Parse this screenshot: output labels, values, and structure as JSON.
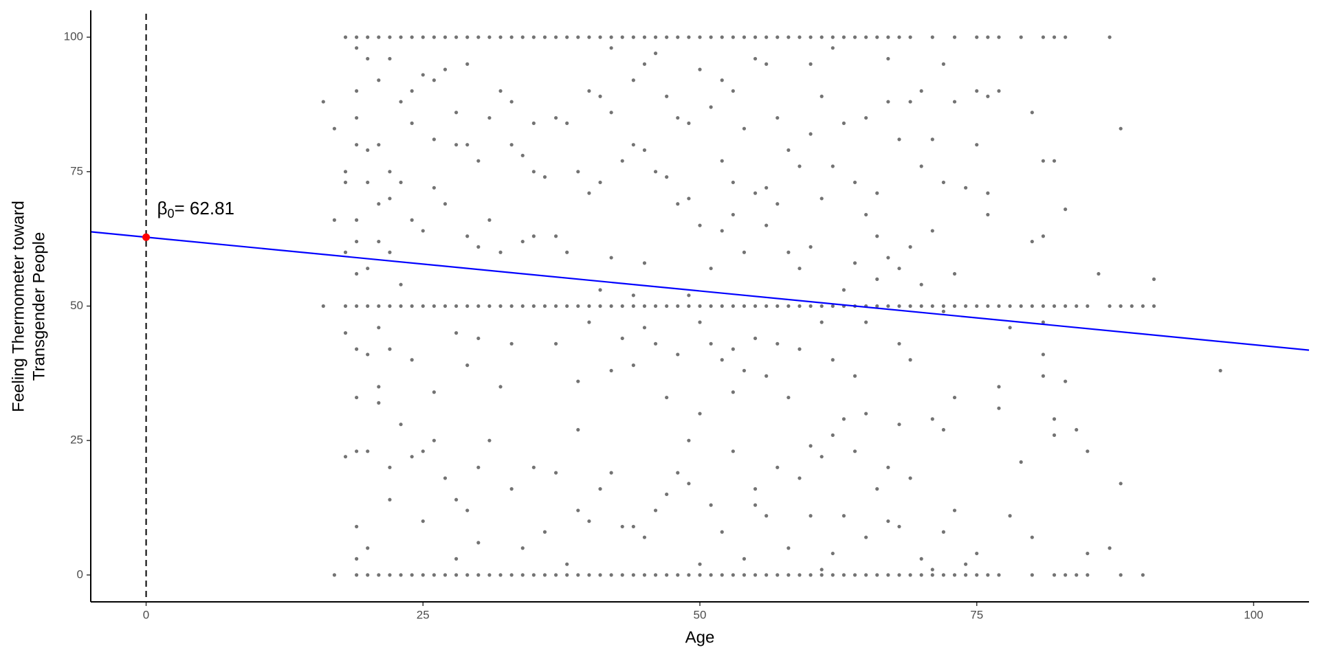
{
  "chart_data": {
    "type": "scatter",
    "xlabel": "Age",
    "ylabel": [
      "Feeling Thermometer toward",
      "Transgender People"
    ],
    "xlim": [
      -5,
      105
    ],
    "ylim": [
      -5,
      105
    ],
    "xticks": [
      0,
      25,
      50,
      75,
      100
    ],
    "yticks": [
      0,
      25,
      50,
      75,
      100
    ],
    "grid": false,
    "point_color": "#000000",
    "series": [
      {
        "x": [
          18,
          19,
          20,
          21,
          22,
          23,
          24,
          25,
          26,
          27,
          28,
          29,
          30,
          31,
          32,
          33,
          34,
          35,
          36,
          37,
          38,
          39,
          40,
          41,
          42,
          43,
          44,
          45,
          46,
          47,
          48,
          49,
          50,
          51,
          52,
          53,
          54,
          55,
          56,
          57,
          58,
          59,
          60,
          61,
          62,
          63,
          64,
          65,
          66,
          67,
          68,
          69,
          71,
          73,
          75,
          76,
          77,
          79,
          81,
          82,
          83,
          87
        ],
        "values": [
          100,
          100,
          100,
          100,
          100,
          100,
          100,
          100,
          100,
          100,
          100,
          100,
          100,
          100,
          100,
          100,
          100,
          100,
          100,
          100,
          100,
          100,
          100,
          100,
          100,
          100,
          100,
          100,
          100,
          100,
          100,
          100,
          100,
          100,
          100,
          100,
          100,
          100,
          100,
          100,
          100,
          100,
          100,
          100,
          100,
          100,
          100,
          100,
          100,
          100,
          100,
          100,
          100,
          100,
          100,
          100,
          100,
          100,
          100,
          100,
          100,
          100
        ]
      },
      {
        "x": [
          16,
          18,
          19,
          20,
          21,
          22,
          23,
          24,
          25,
          26,
          27,
          28,
          29,
          30,
          31,
          32,
          33,
          34,
          35,
          36,
          37,
          38,
          39,
          40,
          41,
          42,
          43,
          44,
          45,
          46,
          47,
          48,
          49,
          50,
          51,
          52,
          53,
          54,
          55,
          56,
          57,
          58,
          59,
          60,
          61,
          62,
          63,
          64,
          65,
          66,
          67,
          68,
          69,
          70,
          71,
          72,
          73,
          74,
          75,
          76,
          77,
          78,
          79,
          80,
          81,
          82,
          83,
          84,
          85,
          87,
          88,
          89,
          90,
          91
        ],
        "values": [
          50,
          50,
          50,
          50,
          50,
          50,
          50,
          50,
          50,
          50,
          50,
          50,
          50,
          50,
          50,
          50,
          50,
          50,
          50,
          50,
          50,
          50,
          50,
          50,
          50,
          50,
          50,
          50,
          50,
          50,
          50,
          50,
          50,
          50,
          50,
          50,
          50,
          50,
          50,
          50,
          50,
          50,
          50,
          50,
          50,
          50,
          50,
          50,
          50,
          50,
          50,
          50,
          50,
          50,
          50,
          50,
          50,
          50,
          50,
          50,
          50,
          50,
          50,
          50,
          50,
          50,
          50,
          50,
          50,
          50,
          50,
          50,
          50,
          50
        ]
      },
      {
        "x": [
          17,
          19,
          20,
          21,
          22,
          23,
          24,
          25,
          26,
          27,
          28,
          29,
          30,
          31,
          32,
          33,
          34,
          35,
          36,
          37,
          38,
          39,
          40,
          41,
          42,
          43,
          44,
          45,
          46,
          47,
          48,
          49,
          50,
          51,
          52,
          53,
          54,
          55,
          56,
          57,
          58,
          59,
          60,
          61,
          62,
          63,
          64,
          65,
          66,
          67,
          68,
          69,
          70,
          71,
          72,
          73,
          74,
          75,
          76,
          77,
          80,
          82,
          83,
          84,
          85,
          88,
          90
        ],
        "values": [
          0,
          0,
          0,
          0,
          0,
          0,
          0,
          0,
          0,
          0,
          0,
          0,
          0,
          0,
          0,
          0,
          0,
          0,
          0,
          0,
          0,
          0,
          0,
          0,
          0,
          0,
          0,
          0,
          0,
          0,
          0,
          0,
          0,
          0,
          0,
          0,
          0,
          0,
          0,
          0,
          0,
          0,
          0,
          0,
          0,
          0,
          0,
          0,
          0,
          0,
          0,
          0,
          0,
          0,
          0,
          0,
          0,
          0,
          0,
          0,
          0,
          0,
          0,
          0,
          0,
          0,
          0
        ]
      },
      {
        "x": [
          16,
          17,
          17,
          18,
          18,
          18,
          18,
          18,
          19,
          19,
          19,
          19,
          19,
          19,
          19,
          19,
          19,
          19,
          19,
          19,
          20,
          20,
          20,
          20,
          20,
          20,
          20,
          21,
          21,
          21,
          21,
          21,
          21,
          21,
          22,
          22,
          22,
          22,
          22,
          22,
          22,
          23,
          23,
          23,
          23,
          24,
          24,
          24,
          24,
          24,
          25,
          25,
          25,
          25,
          26,
          26,
          26,
          26,
          26,
          27,
          27,
          27,
          28,
          28,
          28,
          28,
          28,
          29,
          29,
          29,
          29,
          29,
          30,
          30,
          30,
          30,
          30,
          31,
          31,
          31,
          32,
          32,
          32,
          33,
          33,
          33,
          33,
          34,
          34,
          34,
          35,
          35,
          35,
          35,
          36,
          36,
          37,
          37,
          37,
          37,
          38,
          38,
          38,
          39,
          39,
          39,
          39,
          40,
          40,
          40,
          40,
          41,
          41,
          41,
          41,
          42,
          42,
          42,
          42,
          42,
          43,
          43,
          43,
          44,
          44,
          44,
          44,
          44,
          45,
          45,
          45,
          45,
          45,
          46,
          46,
          46,
          46,
          47,
          47,
          47,
          47,
          48,
          48,
          48,
          48,
          49,
          49,
          49,
          49,
          49,
          50,
          50,
          50,
          50,
          50,
          51,
          51,
          51,
          51,
          52,
          52,
          52,
          52,
          52,
          53,
          53,
          53,
          53,
          53,
          53,
          54,
          54,
          54,
          54,
          55,
          55,
          55,
          55,
          55,
          56,
          56,
          56,
          56,
          56,
          57,
          57,
          57,
          57,
          58,
          58,
          58,
          58,
          59,
          59,
          59,
          59,
          60,
          60,
          60,
          60,
          60,
          61,
          61,
          61,
          61,
          61,
          62,
          62,
          62,
          62,
          62,
          63,
          63,
          63,
          63,
          64,
          64,
          64,
          64,
          65,
          65,
          65,
          65,
          65,
          66,
          66,
          66,
          66,
          67,
          67,
          67,
          67,
          67,
          68,
          68,
          68,
          68,
          68,
          69,
          69,
          69,
          69,
          70,
          70,
          70,
          70,
          71,
          71,
          71,
          71,
          72,
          72,
          72,
          72,
          72,
          73,
          73,
          73,
          73,
          74,
          74,
          75,
          75,
          75,
          76,
          76,
          76,
          77,
          77,
          77,
          78,
          78,
          79,
          80,
          80,
          80,
          81,
          81,
          81,
          81,
          81,
          82,
          82,
          82,
          83,
          83,
          84,
          85,
          85,
          86,
          87,
          88,
          88,
          91,
          97
        ],
        "values": [
          88,
          83,
          66,
          75,
          73,
          60,
          45,
          22,
          98,
          90,
          85,
          80,
          66,
          62,
          56,
          42,
          33,
          23,
          9,
          3,
          96,
          79,
          73,
          57,
          41,
          23,
          5,
          92,
          80,
          69,
          62,
          46,
          35,
          32,
          96,
          75,
          70,
          60,
          42,
          20,
          14,
          88,
          73,
          54,
          28,
          90,
          84,
          66,
          40,
          22,
          93,
          64,
          23,
          10,
          92,
          81,
          72,
          34,
          25,
          94,
          69,
          18,
          86,
          80,
          45,
          14,
          3,
          95,
          80,
          63,
          39,
          12,
          77,
          61,
          44,
          20,
          6,
          85,
          66,
          25,
          90,
          60,
          35,
          88,
          80,
          43,
          16,
          78,
          62,
          5,
          84,
          75,
          63,
          20,
          74,
          8,
          85,
          63,
          43,
          19,
          84,
          60,
          2,
          75,
          36,
          27,
          12,
          90,
          71,
          47,
          10,
          89,
          73,
          53,
          16,
          98,
          86,
          59,
          38,
          19,
          77,
          44,
          9,
          92,
          80,
          52,
          39,
          9,
          95,
          79,
          58,
          46,
          7,
          97,
          75,
          43,
          12,
          89,
          74,
          33,
          15,
          85,
          69,
          41,
          19,
          84,
          70,
          52,
          25,
          17,
          94,
          65,
          47,
          30,
          2,
          87,
          57,
          43,
          13,
          92,
          77,
          64,
          40,
          8,
          90,
          73,
          67,
          42,
          34,
          23,
          83,
          60,
          38,
          3,
          96,
          71,
          44,
          16,
          13,
          95,
          72,
          65,
          37,
          11,
          85,
          69,
          43,
          20,
          79,
          60,
          33,
          5,
          76,
          57,
          42,
          18,
          95,
          82,
          61,
          24,
          11,
          89,
          70,
          47,
          22,
          1,
          98,
          76,
          40,
          26,
          4,
          84,
          53,
          29,
          11,
          73,
          58,
          37,
          23,
          85,
          67,
          47,
          30,
          7,
          71,
          63,
          55,
          16,
          96,
          88,
          59,
          20,
          10,
          81,
          57,
          43,
          28,
          9,
          88,
          61,
          40,
          18,
          90,
          76,
          54,
          3,
          81,
          64,
          29,
          1,
          95,
          73,
          49,
          27,
          8,
          88,
          56,
          33,
          12,
          72,
          2,
          90,
          80,
          4,
          89,
          71,
          67,
          90,
          35,
          31,
          46,
          11,
          21,
          86,
          62,
          7,
          77,
          63,
          47,
          41,
          37,
          77,
          29,
          26,
          68,
          36,
          27,
          23,
          4,
          56,
          5,
          83,
          17,
          55,
          38
        ]
      }
    ],
    "lines": [
      {
        "color": "#0000ff",
        "x": [
          -5,
          105
        ],
        "values": [
          63.81,
          41.81
        ]
      }
    ],
    "vline": {
      "x": 0
    },
    "annotation": {
      "x": 0,
      "y": 62.81,
      "color": "#ff0000",
      "symbol": "β",
      "subscript": "0",
      "text": "= 62.81"
    }
  }
}
